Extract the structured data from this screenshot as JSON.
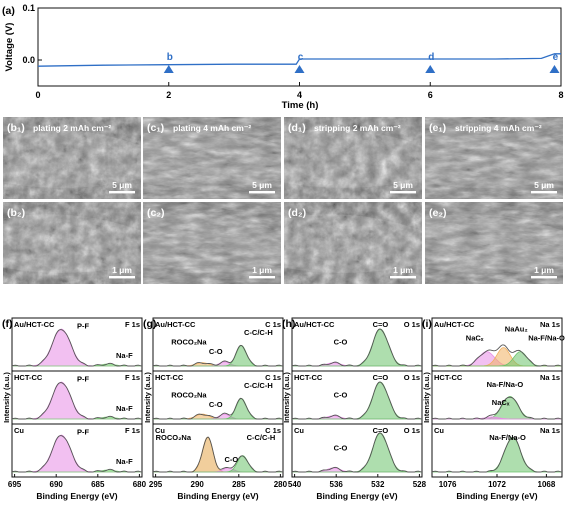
{
  "panel_a": {
    "label": "(a)",
    "ylabel": "Voltage (V)",
    "xlabel": "Time (h)",
    "yticks": [
      "0.1",
      "0.0"
    ],
    "xticks": [
      "0",
      "2",
      "4",
      "6",
      "8"
    ],
    "markers": [
      "b",
      "c",
      "d",
      "e"
    ],
    "line_color": "#2f6fc6",
    "marker_color": "#2f6fc6"
  },
  "chart_data": [
    {
      "type": "line",
      "xlabel": "Time (h)",
      "ylabel": "Voltage (V)",
      "xlim": [
        0,
        8
      ],
      "ylim": [
        -0.05,
        0.1
      ],
      "x": [
        0,
        1,
        2,
        3,
        3.95,
        4.0,
        5,
        6,
        7,
        7.7,
        7.9,
        8
      ],
      "series": [
        {
          "values": [
            -0.012,
            -0.01,
            -0.009,
            -0.008,
            -0.008,
            0.002,
            0.002,
            0.002,
            0.002,
            0.003,
            0.012,
            0.012
          ]
        }
      ],
      "markers": [
        {
          "label": "b",
          "x": 2
        },
        {
          "label": "c",
          "x": 4
        },
        {
          "label": "d",
          "x": 6
        },
        {
          "label": "e",
          "x": 7.9
        }
      ]
    }
  ],
  "sem": {
    "row1": [
      {
        "label": "(b₁)",
        "caption": "plating 2 mAh cm⁻²",
        "scale": "5 μm"
      },
      {
        "label": "(c₁)",
        "caption": "plating 4 mAh cm⁻²",
        "scale": "5 μm"
      },
      {
        "label": "(d₁)",
        "caption": "stripping 2 mAh cm⁻²",
        "scale": "5 μm"
      },
      {
        "label": "(e₁)",
        "caption": "stripping 4 mAh cm⁻²",
        "scale": "5 μm"
      }
    ],
    "row2": [
      {
        "label": "(b₂)",
        "scale": "1 μm"
      },
      {
        "label": "(c₂)",
        "scale": "1 μm"
      },
      {
        "label": "(d₂)",
        "scale": "1 μm"
      },
      {
        "label": "(e₂)",
        "scale": "1 μm"
      }
    ]
  },
  "xps": {
    "ylabel": "Intensity (a.u.)",
    "xlabel": "Binding Energy (eV)",
    "panels": [
      {
        "label": "(f)",
        "element": "F 1s",
        "ticks": [
          "695",
          "690",
          "685",
          "680"
        ],
        "rows": [
          {
            "sample": "Au/HCT-CC",
            "peaks": [
              "P-F",
              "Na-F"
            ]
          },
          {
            "sample": "HCT-CC",
            "peaks": [
              "P-F",
              "Na-F"
            ]
          },
          {
            "sample": "Cu",
            "peaks": [
              "P-F",
              "Na-F"
            ]
          }
        ]
      },
      {
        "label": "(g)",
        "element": "C 1s",
        "ticks": [
          "295",
          "290",
          "285",
          "280"
        ],
        "rows": [
          {
            "sample": "Au/HCT-CC",
            "peaks": [
              "ROCO₂Na",
              "C-O",
              "C-C/C-H"
            ]
          },
          {
            "sample": "HCT-CC",
            "peaks": [
              "ROCO₂Na",
              "C-O",
              "C-C/C-H"
            ]
          },
          {
            "sample": "Cu",
            "peaks": [
              "ROCO₂Na",
              "C-O",
              "C-C/C-H"
            ]
          }
        ]
      },
      {
        "label": "(h)",
        "element": "O 1s",
        "ticks": [
          "540",
          "536",
          "532",
          "528"
        ],
        "rows": [
          {
            "sample": "Au/HCT-CC",
            "peaks": [
              "C-O",
              "C=O"
            ]
          },
          {
            "sample": "HCT-CC",
            "peaks": [
              "C-O",
              "C=O"
            ]
          },
          {
            "sample": "Cu",
            "peaks": [
              "C-O",
              "C=O"
            ]
          }
        ]
      },
      {
        "label": "(i)",
        "element": "Na 1s",
        "ticks": [
          "1076",
          "1072",
          "1068"
        ],
        "rows": [
          {
            "sample": "Au/HCT-CC",
            "peaks": [
              "NaCₓ",
              "NaAu₂",
              "Na-F/Na-O"
            ]
          },
          {
            "sample": "HCT-CC",
            "peaks": [
              "Na-F/Na-O",
              "NaCₓ"
            ]
          },
          {
            "sample": "Cu",
            "peaks": [
              "Na-F/Na-O"
            ]
          }
        ]
      }
    ]
  }
}
